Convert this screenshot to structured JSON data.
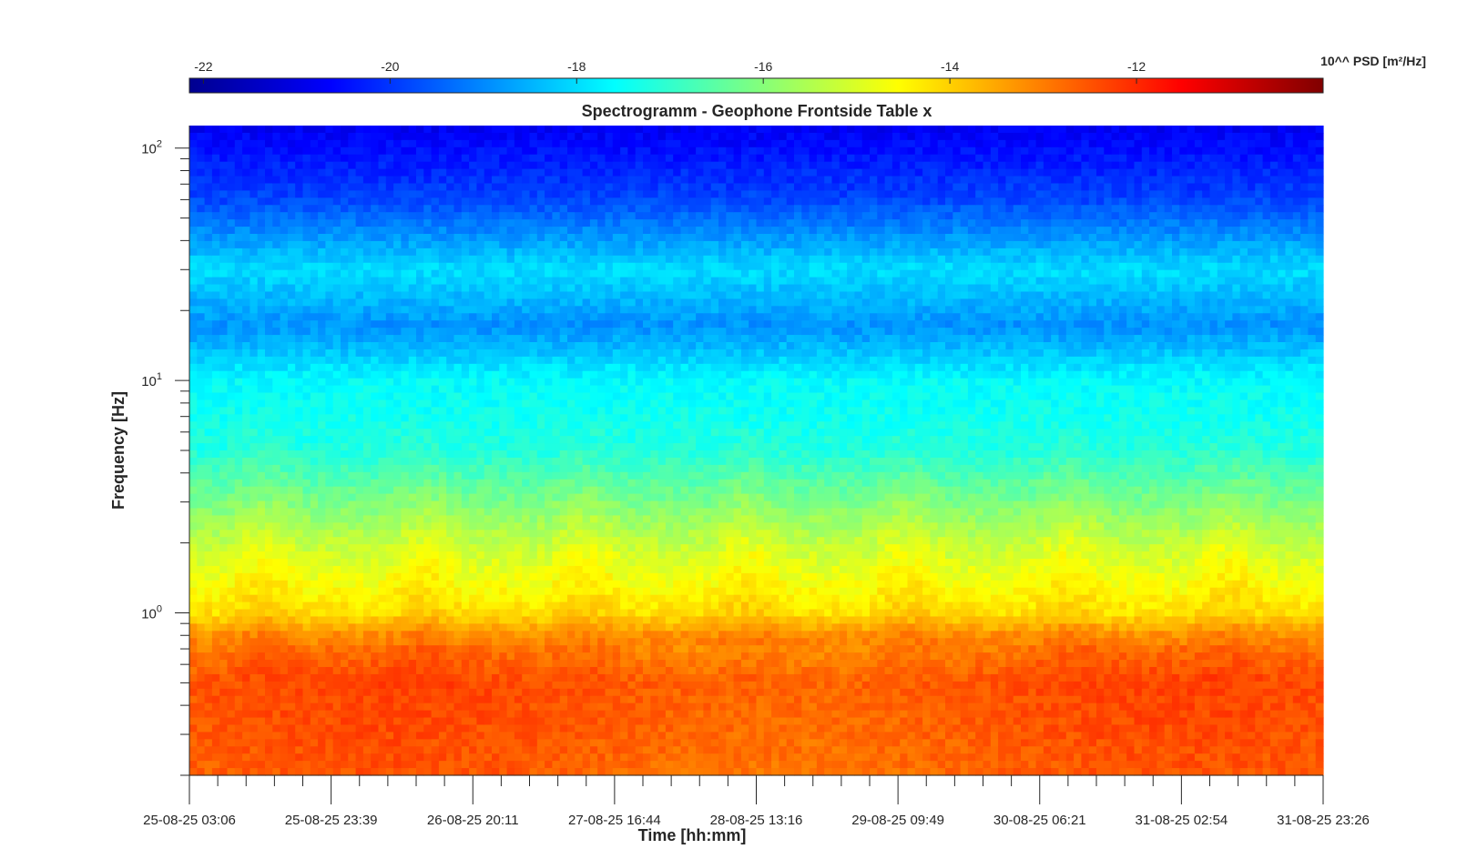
{
  "chart_data": {
    "type": "heatmap",
    "title": "Spectrogramm - Geophone Frontside Table x",
    "xlabel": "Time [hh:mm]",
    "ylabel": "Frequency [Hz]",
    "y_scale": "log",
    "ylim": [
      0.2,
      125
    ],
    "x_tick_labels": [
      "25-08-25 03:06",
      "25-08-25 23:39",
      "26-08-25 20:11",
      "27-08-25 16:44",
      "28-08-25 13:16",
      "29-08-25 09:49",
      "30-08-25 06:21",
      "31-08-25 02:54",
      "31-08-25 23:26"
    ],
    "y_ticks": [
      {
        "value": 1,
        "base": "10",
        "exp": "0"
      },
      {
        "value": 10,
        "base": "10",
        "exp": "1"
      },
      {
        "value": 100,
        "base": "10",
        "exp": "2"
      }
    ],
    "colorbar": {
      "label": "10^^ PSD [m²/Hz]",
      "ticks": [
        "-22",
        "-20",
        "-18",
        "-16",
        "-14",
        "-12"
      ],
      "range": [
        -22.15,
        -10
      ],
      "colormap": "jet"
    },
    "psd_profile": [
      {
        "freq_hz": 0.2,
        "log10_psd": -12.7
      },
      {
        "freq_hz": 0.5,
        "log10_psd": -12.5
      },
      {
        "freq_hz": 0.8,
        "log10_psd": -13.2
      },
      {
        "freq_hz": 1.0,
        "log10_psd": -14.2
      },
      {
        "freq_hz": 2.0,
        "log10_psd": -15.3
      },
      {
        "freq_hz": 5.0,
        "log10_psd": -17.2
      },
      {
        "freq_hz": 10,
        "log10_psd": -17.6
      },
      {
        "freq_hz": 17,
        "log10_psd": -18.9
      },
      {
        "freq_hz": 30,
        "log10_psd": -18.0
      },
      {
        "freq_hz": 60,
        "log10_psd": -19.8
      },
      {
        "freq_hz": 125,
        "log10_psd": -20.8
      }
    ],
    "grid": false
  }
}
